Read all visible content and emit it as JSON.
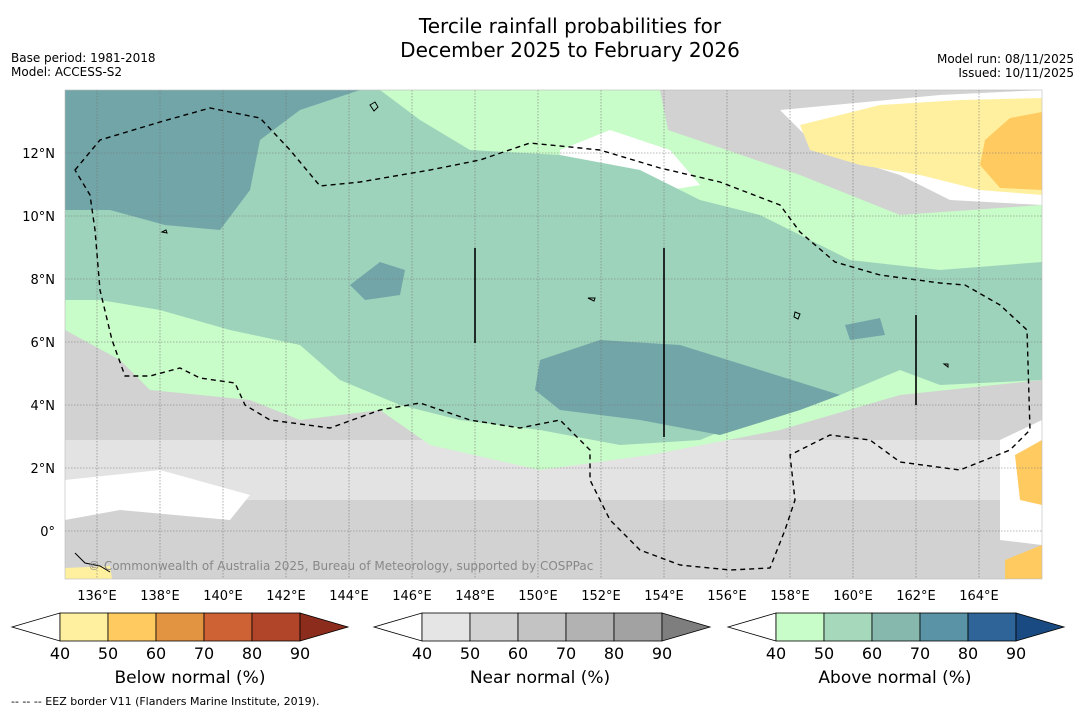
{
  "title": {
    "line1": "Tercile rainfall probabilities for",
    "line2": "December 2025 to February 2026"
  },
  "meta_left": {
    "base_period": "Base period: 1981-2018",
    "model": "Model: ACCESS-S2"
  },
  "meta_right": {
    "model_run": "Model run: 08/11/2025",
    "issued": "Issued: 10/11/2025"
  },
  "map": {
    "lon_range": [
      135,
      166
    ],
    "lat_range": [
      -1.5,
      14
    ],
    "lon_ticks": [
      "136°E",
      "138°E",
      "140°E",
      "142°E",
      "144°E",
      "146°E",
      "148°E",
      "150°E",
      "152°E",
      "154°E",
      "156°E",
      "158°E",
      "160°E",
      "162°E",
      "164°E"
    ],
    "lat_ticks": [
      "12°N",
      "10°N",
      "8°N",
      "6°N",
      "4°N",
      "2°N",
      "0°"
    ],
    "copyright": "© Commonwealth of Australia 2025, Bureau of Meteorology, supported by COSPPac"
  },
  "colorbars": {
    "ticks": [
      "40",
      "50",
      "60",
      "70",
      "80",
      "90"
    ],
    "below": {
      "label": "Below normal (%)",
      "colors": [
        "#ffffff",
        "#fff0a0",
        "#ffca60",
        "#e39441",
        "#cf6234",
        "#b0452a",
        "#8b2c1c"
      ]
    },
    "near": {
      "label": "Near normal (%)",
      "colors": [
        "#ffffff",
        "#e5e5e5",
        "#d2d2d2",
        "#c3c3c3",
        "#b2b2b2",
        "#a2a2a2",
        "#7e7e7e"
      ]
    },
    "above": {
      "label": "Above normal (%)",
      "colors": [
        "#ffffff",
        "#c8fcc8",
        "#a6d9bc",
        "#87b8ae",
        "#5a92a6",
        "#2f6499",
        "#1a4a82"
      ]
    }
  },
  "footnote": "--  --  -- EEZ border V11 (Flanders Marine Institute, 2019)."
}
